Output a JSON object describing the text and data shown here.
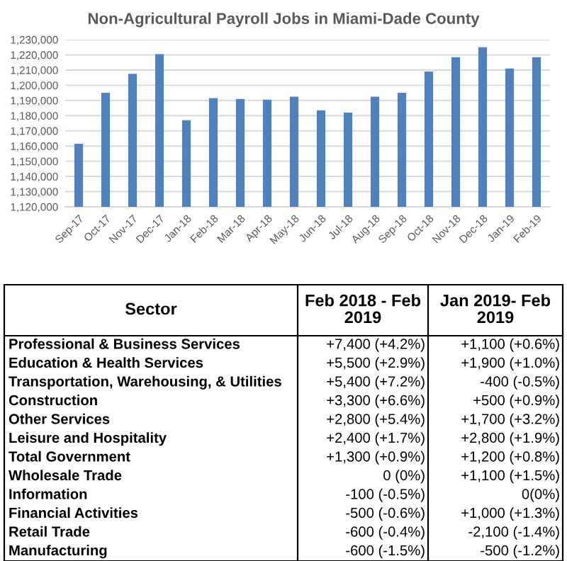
{
  "chart_data": [
    {
      "type": "bar",
      "title": "Non-Agricultural Payroll Jobs in Miami-Dade County",
      "categories": [
        "Sep-17",
        "Oct-17",
        "Nov-17",
        "Dec-17",
        "Jan-18",
        "Feb-18",
        "Mar-18",
        "Apr-18",
        "May-18",
        "Jun-18",
        "Jul-18",
        "Aug-18",
        "Sep-18",
        "Oct-18",
        "Nov-18",
        "Dec-18",
        "Jan-19",
        "Feb-19"
      ],
      "values": [
        1161500,
        1195000,
        1207500,
        1220500,
        1177000,
        1191500,
        1191000,
        1190500,
        1192500,
        1183500,
        1182000,
        1192500,
        1195000,
        1209000,
        1218500,
        1225000,
        1211000,
        1218500
      ],
      "color": "#4f81bd",
      "ylim": [
        1120000,
        1230000
      ],
      "yticks": [
        {
          "value": 1120000,
          "label": "1,120,000"
        },
        {
          "value": 1130000,
          "label": "1,130,000"
        },
        {
          "value": 1140000,
          "label": "1,140,000"
        },
        {
          "value": 1150000,
          "label": "1,150,000"
        },
        {
          "value": 1160000,
          "label": "1,160,000"
        },
        {
          "value": 1170000,
          "label": "1,170,000"
        },
        {
          "value": 1180000,
          "label": "1,180,000"
        },
        {
          "value": 1190000,
          "label": "1,190,000"
        },
        {
          "value": 1200000,
          "label": "1,200,000"
        },
        {
          "value": 1210000,
          "label": "1,210,000"
        },
        {
          "value": 1220000,
          "label": "1,220,000"
        },
        {
          "value": 1230000,
          "label": "1,230,000"
        }
      ],
      "grid": "y"
    },
    {
      "type": "other",
      "annotations": [
        "Sector",
        "Feb 2018 - Feb\n2019",
        "Jan 2019- Feb\n2019",
        "Professional & Business Services",
        "+7,400 (+4.2%)",
        "+1,100 (+0.6%)",
        "Education & Health Services",
        "+5,500 (+2.9%)",
        "+1,900 (+1.0%)",
        "Transportation, Warehousing, & Utilities",
        "+5,400 (+7.2%)",
        "-400 (-0.5%)",
        "Construction",
        "+3,300 (+6.6%)",
        "+500 (+0.9%)",
        "Other Services",
        "+2,800 (+5.4%)",
        "+1,700 (+3.2%)",
        "Leisure and Hospitality",
        "+2,400 (+1.7%)",
        "+2,800 (+1.9%)",
        "Total Government",
        "+1,300 (+0.9%)",
        "+1,200 (+0.8%)",
        "Wholesale Trade",
        "0 (0%)",
        "+1,100 (+1.5%)",
        "Information",
        "-100 (-0.5%)",
        "0(0%)",
        "Financial Activities",
        "-500 (-0.6%)",
        "+1,000 (+1.3%)",
        "Retail Trade",
        "-600 (-0.4%)",
        "-2,100 (-1.4%)",
        "Manufacturing",
        "-600 (-1.5%)",
        "-500 (-1.2%)"
      ]
    }
  ]
}
